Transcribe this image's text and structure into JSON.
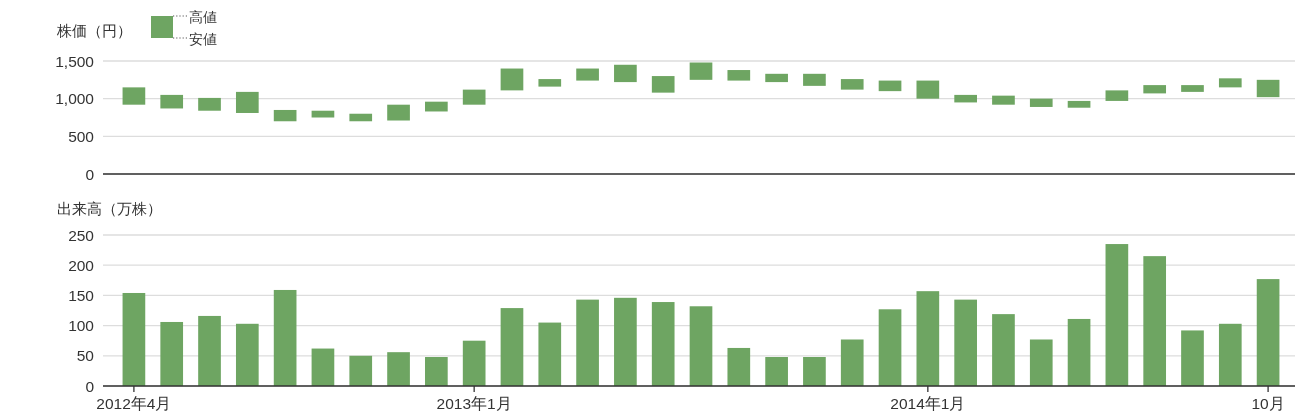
{
  "chart_data": [
    {
      "type": "bar",
      "ylabel": "株価（円）",
      "annotations": [
        "高値",
        "安値"
      ],
      "categories": [
        null,
        null,
        null,
        null,
        null,
        null,
        null,
        null,
        null,
        null,
        null,
        null,
        null,
        null,
        null,
        null,
        null,
        null,
        null,
        null,
        null,
        null,
        null,
        null,
        null,
        null,
        null,
        null,
        null,
        null,
        null
      ],
      "base": [
        920,
        870,
        840,
        810,
        700,
        750,
        700,
        710,
        830,
        920,
        1110,
        1160,
        1240,
        1220,
        1080,
        1250,
        1240,
        1220,
        1170,
        1120,
        1100,
        1000,
        950,
        920,
        890,
        880,
        970,
        1070,
        1090,
        1150,
        1020
      ],
      "values": [
        230,
        180,
        170,
        280,
        150,
        90,
        100,
        210,
        130,
        200,
        290,
        100,
        160,
        230,
        220,
        230,
        140,
        110,
        160,
        140,
        140,
        240,
        100,
        120,
        110,
        90,
        140,
        110,
        90,
        120,
        230
      ],
      "color": "#6ea562",
      "ylim": [
        0,
        1500
      ],
      "yticks": [
        0,
        500,
        {
          "value": 1000,
          "label": "1,000"
        },
        {
          "value": 1500,
          "label": "1,500"
        }
      ],
      "grid": "y",
      "tick_labels": "y"
    },
    {
      "type": "bar",
      "ylabel": "出来高（万株）",
      "categories": [
        "2012年4月",
        null,
        null,
        null,
        null,
        null,
        null,
        null,
        null,
        "2013年1月",
        null,
        null,
        null,
        null,
        null,
        null,
        null,
        null,
        null,
        null,
        null,
        "2014年1月",
        null,
        null,
        null,
        null,
        null,
        null,
        null,
        null,
        "10月"
      ],
      "values": [
        154,
        106,
        116,
        103,
        159,
        62,
        50,
        56,
        48,
        75,
        129,
        105,
        143,
        146,
        139,
        132,
        63,
        48,
        48,
        77,
        127,
        157,
        143,
        119,
        77,
        111,
        235,
        215,
        92,
        103,
        177
      ],
      "color": "#6ea562",
      "ylim": [
        0,
        250
      ],
      "yticks": [
        0,
        50,
        100,
        150,
        200,
        250
      ],
      "grid": "y"
    }
  ]
}
